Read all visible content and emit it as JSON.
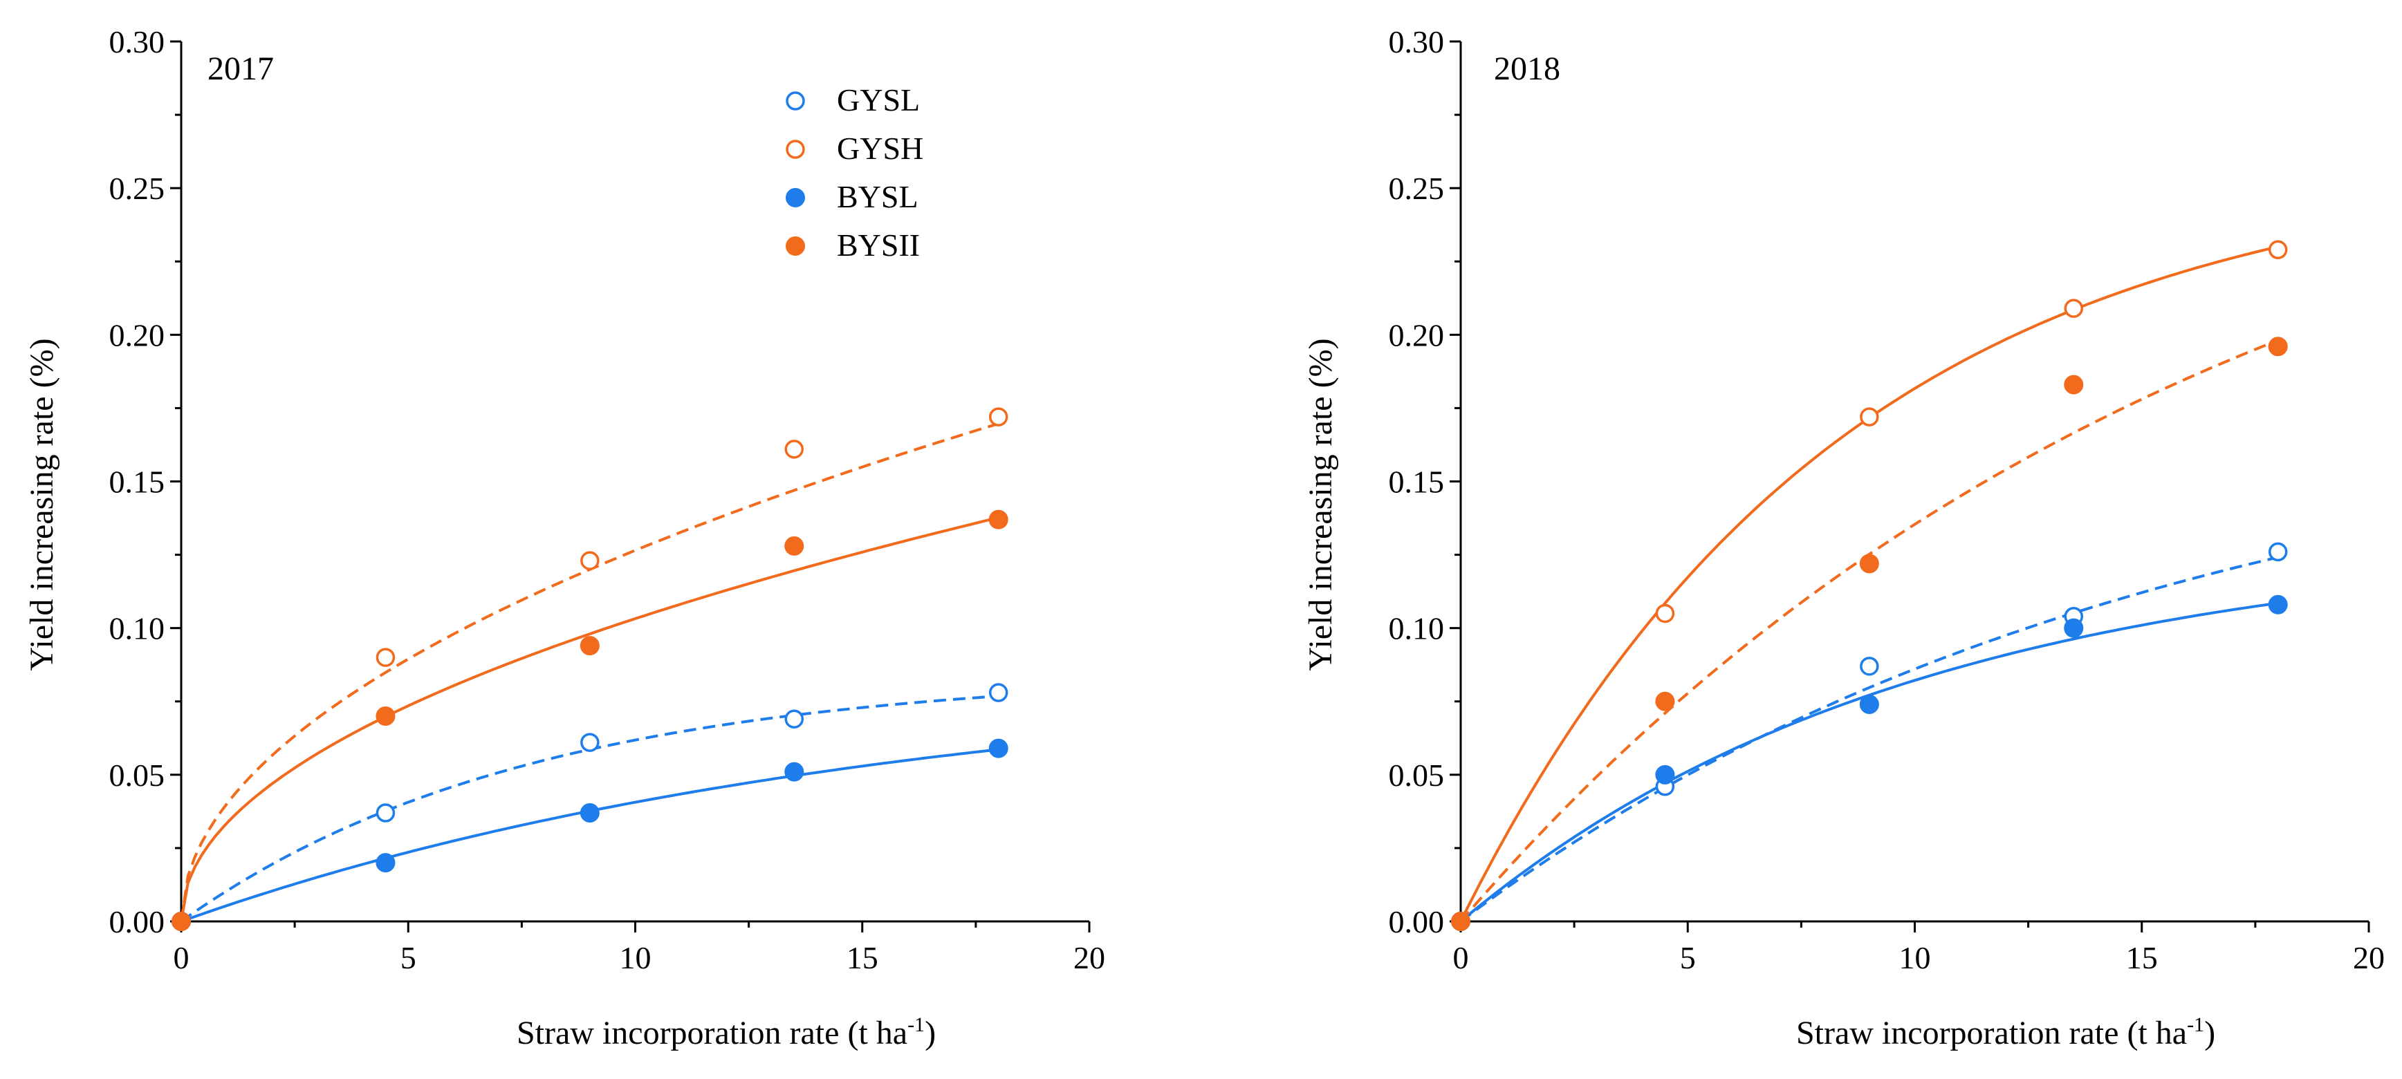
{
  "colors": {
    "blue": "#1E7DEB",
    "orange": "#F26B1D",
    "axis": "#000000"
  },
  "chart_data": [
    {
      "type": "scatter",
      "panel_label": "2017",
      "xlabel": "Straw incorporation rate (t ha",
      "xlabel_sup": "-1",
      "xlabel_end": ")",
      "ylabel": "Yield increasing rate (%)",
      "xlim": [
        0,
        20
      ],
      "ylim": [
        0,
        0.3
      ],
      "xticks": [
        0,
        5,
        10,
        15,
        20
      ],
      "yticks": [
        0.0,
        0.05,
        0.1,
        0.15,
        0.2,
        0.25,
        0.3
      ],
      "xtick_labels": [
        "0",
        "5",
        "10",
        "15",
        "20"
      ],
      "ytick_labels": [
        "0.00",
        "0.05",
        "0.10",
        "0.15",
        "0.20",
        "0.25",
        "0.30"
      ],
      "legend": {
        "placement": "top-center"
      },
      "series": [
        {
          "name": "GYSL",
          "color": "blue",
          "marker": "open-circle",
          "line": "dashed",
          "x": [
            0,
            4.5,
            9,
            13.5,
            18
          ],
          "y": [
            0.0,
            0.037,
            0.061,
            0.069,
            0.078
          ],
          "fit": {
            "form": "exp",
            "a": 0.085,
            "b": 0.13
          }
        },
        {
          "name": "GYSH",
          "color": "orange",
          "marker": "open-circle",
          "line": "dashed",
          "x": [
            0,
            4.5,
            9,
            13.5,
            18
          ],
          "y": [
            0.0,
            0.09,
            0.123,
            0.161,
            0.172
          ],
          "fit": {
            "form": "power",
            "a": 0.04,
            "b": 0.5
          }
        },
        {
          "name": "BYSL",
          "color": "blue",
          "marker": "filled-circle",
          "line": "solid",
          "x": [
            0,
            4.5,
            9,
            13.5,
            18
          ],
          "y": [
            0.0,
            0.02,
            0.037,
            0.051,
            0.059
          ],
          "fit": {
            "form": "exp",
            "a": 0.085,
            "b": 0.065
          }
        },
        {
          "name": "BYSII",
          "color": "orange",
          "marker": "filled-circle",
          "line": "solid",
          "x": [
            0,
            4.5,
            9,
            13.5,
            18
          ],
          "y": [
            0.0,
            0.07,
            0.094,
            0.128,
            0.137
          ],
          "fit": {
            "form": "power",
            "a": 0.0334,
            "b": 0.49
          }
        }
      ]
    },
    {
      "type": "scatter",
      "panel_label": "2018",
      "xlabel": "Straw incorporation rate (t ha",
      "xlabel_sup": "-1",
      "xlabel_end": ")",
      "ylabel": "Yield increasing rate (%)",
      "xlim": [
        0,
        20
      ],
      "ylim": [
        0,
        0.3
      ],
      "xticks": [
        0,
        5,
        10,
        15,
        20
      ],
      "yticks": [
        0.0,
        0.05,
        0.1,
        0.15,
        0.2,
        0.25,
        0.3
      ],
      "xtick_labels": [
        "0",
        "5",
        "10",
        "15",
        "20"
      ],
      "ytick_labels": [
        "0.00",
        "0.05",
        "0.10",
        "0.15",
        "0.20",
        "0.25",
        "0.30"
      ],
      "series": [
        {
          "name": "GYSL",
          "color": "blue",
          "marker": "open-circle",
          "line": "dashed",
          "x": [
            0,
            4.5,
            9,
            13.5,
            18
          ],
          "y": [
            0.0,
            0.046,
            0.087,
            0.104,
            0.126
          ],
          "fit": {
            "form": "exp",
            "a": 0.18,
            "b": 0.065
          }
        },
        {
          "name": "GYSH",
          "color": "orange",
          "marker": "open-circle",
          "line": "solid",
          "x": [
            0,
            4.5,
            9,
            13.5,
            18
          ],
          "y": [
            0.0,
            0.105,
            0.172,
            0.209,
            0.229
          ],
          "fit": {
            "form": "exp",
            "a": 0.26,
            "b": 0.12
          }
        },
        {
          "name": "BYSL",
          "color": "blue",
          "marker": "filled-circle",
          "line": "solid",
          "x": [
            0,
            4.5,
            9,
            13.5,
            18
          ],
          "y": [
            0.0,
            0.05,
            0.074,
            0.1,
            0.108
          ],
          "fit": {
            "form": "exp",
            "a": 0.13,
            "b": 0.1
          }
        },
        {
          "name": "BYSII",
          "color": "orange",
          "marker": "filled-circle",
          "line": "dashed",
          "x": [
            0,
            4.5,
            9,
            13.5,
            18
          ],
          "y": [
            0.0,
            0.075,
            0.122,
            0.183,
            0.196
          ],
          "fit": {
            "form": "exp",
            "a": 0.3,
            "b": 0.06
          }
        }
      ]
    }
  ]
}
